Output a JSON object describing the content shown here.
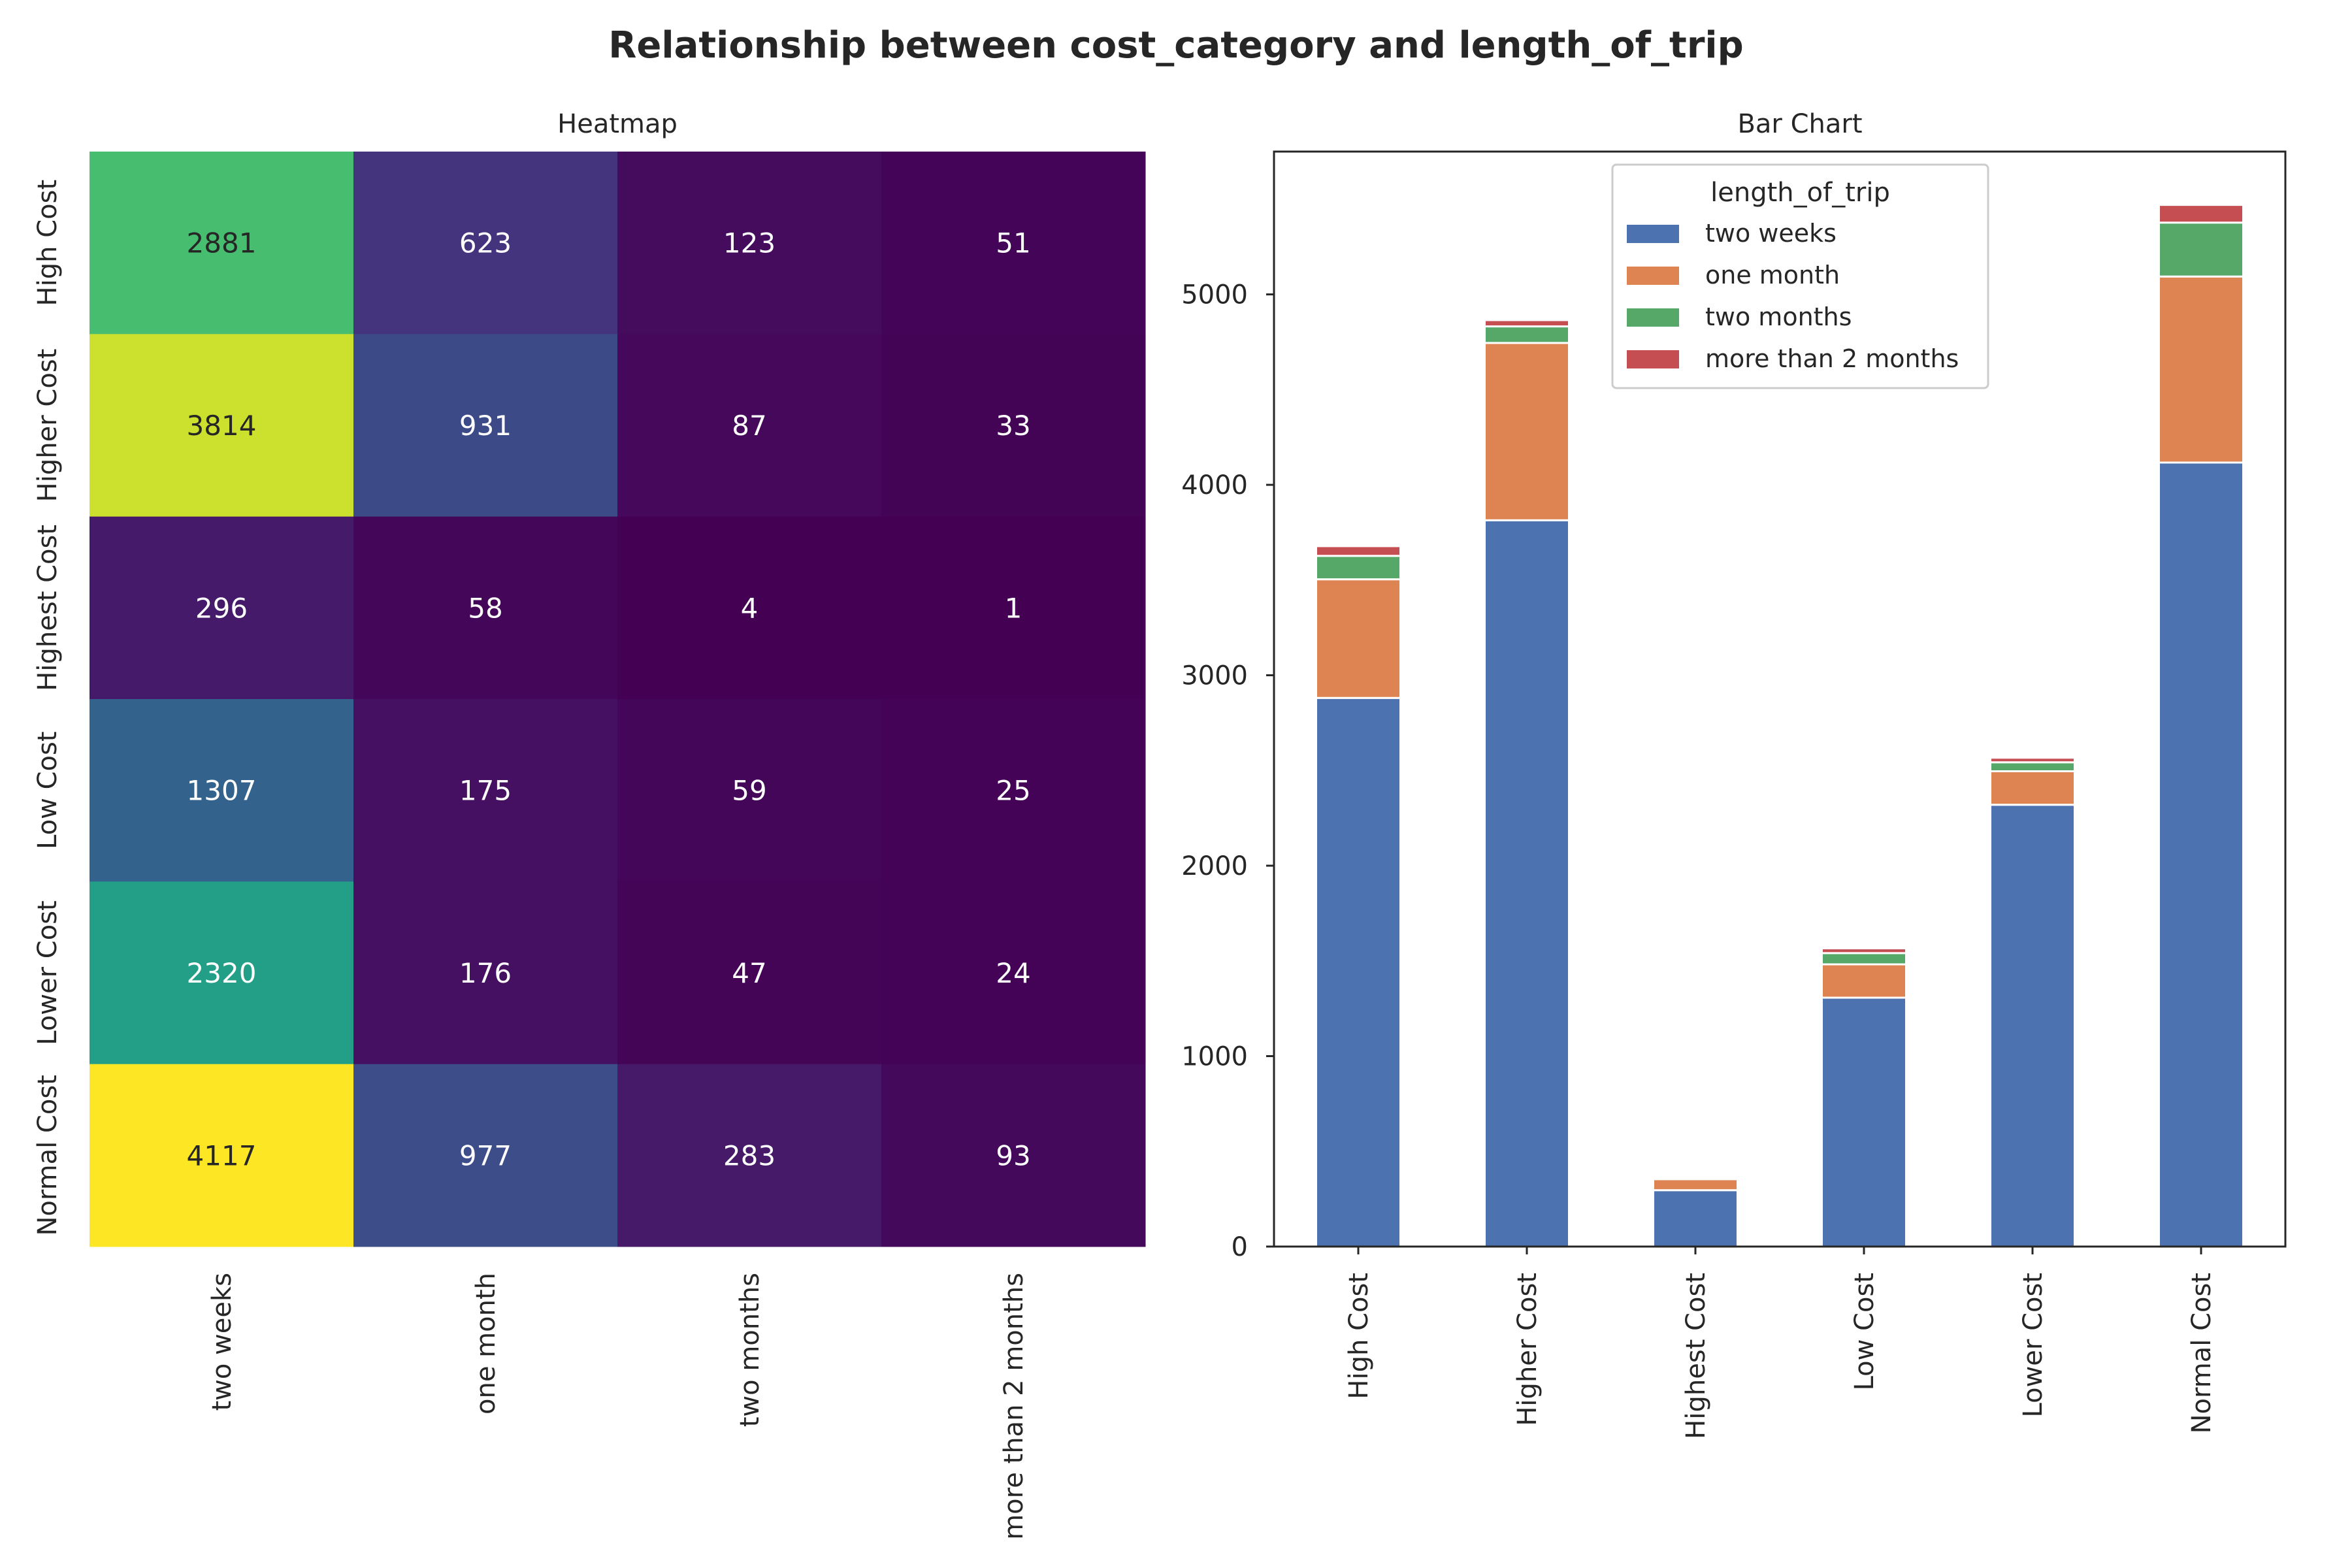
{
  "title": "Relationship between cost_category and length_of_trip",
  "chart_data": [
    {
      "type": "heatmap",
      "title": "Heatmap",
      "rows": [
        "High Cost",
        "Higher Cost",
        "Highest Cost",
        "Low Cost",
        "Lower Cost",
        "Normal Cost"
      ],
      "columns": [
        "two weeks",
        "one month",
        "two months",
        "more than 2 months"
      ],
      "values": [
        [
          2881,
          623,
          123,
          51
        ],
        [
          3814,
          931,
          87,
          33
        ],
        [
          296,
          58,
          4,
          1
        ],
        [
          1307,
          175,
          59,
          25
        ],
        [
          2320,
          176,
          47,
          24
        ],
        [
          4117,
          977,
          283,
          93
        ]
      ],
      "colormap": "viridis",
      "vmin": 1,
      "vmax": 4117
    },
    {
      "type": "bar",
      "stacked": true,
      "title": "Bar Chart",
      "categories": [
        "High Cost",
        "Higher Cost",
        "Highest Cost",
        "Low Cost",
        "Lower Cost",
        "Normal Cost"
      ],
      "series": [
        {
          "name": "two weeks",
          "color": "#4c72b0",
          "values": [
            2881,
            3814,
            296,
            1307,
            2320,
            4117
          ]
        },
        {
          "name": "one month",
          "color": "#dd8452",
          "values": [
            623,
            931,
            58,
            175,
            176,
            977
          ]
        },
        {
          "name": "two months",
          "color": "#55a868",
          "values": [
            123,
            87,
            4,
            59,
            47,
            283
          ]
        },
        {
          "name": "more than 2 months",
          "color": "#c44e52",
          "values": [
            51,
            33,
            1,
            25,
            24,
            93
          ]
        }
      ],
      "legend_title": "length_of_trip",
      "legend_position": "top-center",
      "ylim": [
        0,
        5750
      ],
      "yticks": [
        0,
        1000,
        2000,
        3000,
        4000,
        5000
      ],
      "grid": false
    }
  ]
}
